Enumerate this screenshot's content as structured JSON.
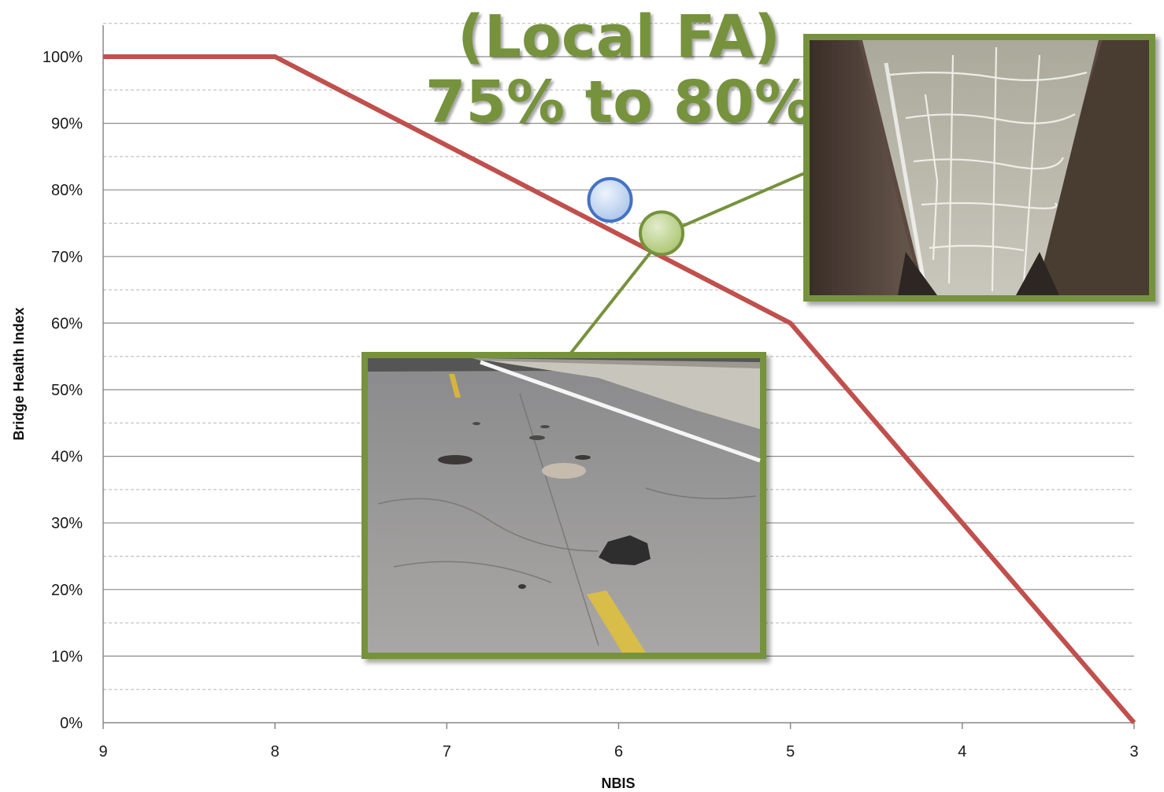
{
  "headline": {
    "line1": "(Local FA)",
    "line2": "75% to 80%",
    "color": "#76923c"
  },
  "chart_data": {
    "type": "line",
    "xlabel": "NBIS",
    "ylabel": "Bridge Health Index",
    "xlim": [
      9,
      3
    ],
    "ylim": [
      0,
      100
    ],
    "x_ticks": [
      9,
      8,
      7,
      6,
      5,
      4,
      3
    ],
    "y_ticks": [
      "0%",
      "10%",
      "20%",
      "30%",
      "40%",
      "50%",
      "60%",
      "70%",
      "80%",
      "90%",
      "100%"
    ],
    "y_tick_values": [
      0,
      10,
      20,
      30,
      40,
      50,
      60,
      70,
      80,
      90,
      100
    ],
    "grid": true,
    "series": [
      {
        "color": "#c0504d",
        "x": [
          9,
          8,
          5,
          3
        ],
        "y": [
          100,
          100,
          60,
          0
        ]
      }
    ],
    "markers": [
      {
        "name": "blue-marker",
        "x": 6.05,
        "y": 78.5,
        "fill": "#c6d9f1",
        "stroke": "#4472c4"
      },
      {
        "name": "green-marker",
        "x": 5.75,
        "y": 73.5,
        "fill": "#c3d69b",
        "stroke": "#76923c"
      }
    ],
    "photo_frame_color": "#76923c"
  }
}
